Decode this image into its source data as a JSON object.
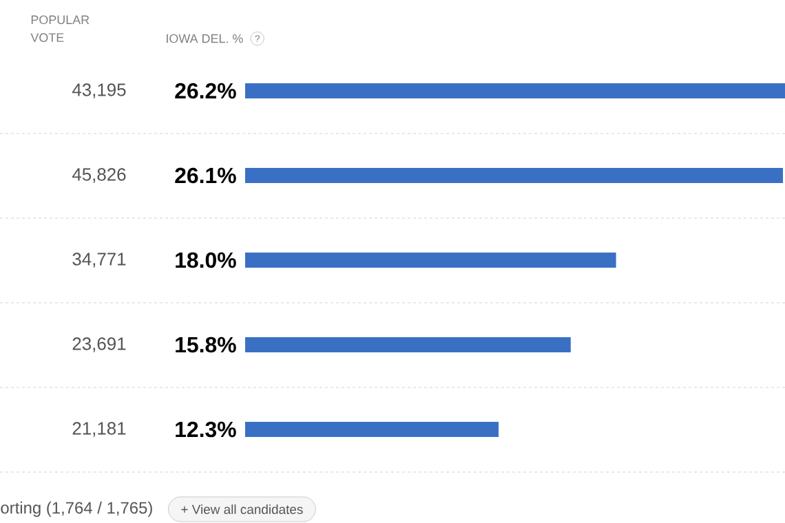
{
  "chart_data": {
    "type": "bar",
    "orientation": "horizontal",
    "xlabel": "IOWA DEL. %",
    "categories": [
      null,
      null,
      null,
      null,
      null
    ],
    "values": [
      26.2,
      26.1,
      18.0,
      15.8,
      12.3
    ],
    "value_labels": [
      "26.2%",
      "26.1%",
      "18.0%",
      "15.8%",
      "12.3%"
    ],
    "color": "#3a70c4",
    "xlim": [
      0,
      26.2
    ],
    "annotations": [
      "POPULAR VOTE",
      "43,195",
      "45,826",
      "34,771",
      "23,691",
      "21,181",
      "?",
      "orting (1,764 / 1,765)",
      "+ View all candidates"
    ]
  }
}
